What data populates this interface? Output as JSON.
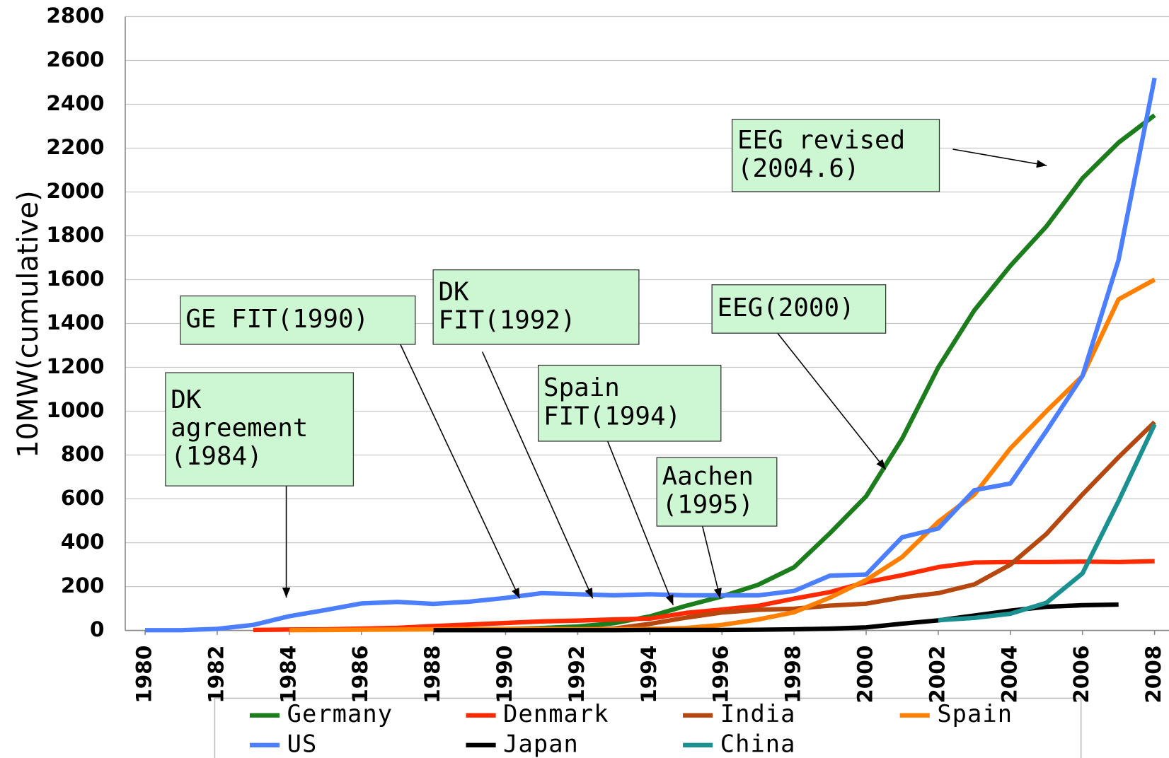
{
  "chart_data": {
    "type": "line",
    "y_label": "10MW(cumulative)",
    "x": [
      1980,
      1981,
      1982,
      1983,
      1984,
      1985,
      1986,
      1987,
      1988,
      1989,
      1990,
      1991,
      1992,
      1993,
      1994,
      1995,
      1996,
      1997,
      1998,
      1999,
      2000,
      2001,
      2002,
      2003,
      2004,
      2005,
      2006,
      2007,
      2008
    ],
    "xlim": [
      1979.45,
      2008.4
    ],
    "xticks": [
      1980,
      1982,
      1984,
      1986,
      1988,
      1990,
      1992,
      1994,
      1996,
      1998,
      2000,
      2002,
      2004,
      2006,
      2008
    ],
    "ylim": [
      0,
      2800
    ],
    "yticks": [
      0,
      200,
      400,
      600,
      800,
      1000,
      1200,
      1400,
      1600,
      1800,
      2000,
      2200,
      2400,
      2600,
      2800
    ],
    "grid": true,
    "series": [
      {
        "name": "Germany",
        "color": "#1b7d1b",
        "values": [
          null,
          null,
          null,
          null,
          null,
          null,
          null,
          null,
          2,
          3,
          6,
          11,
          18,
          33,
          64,
          112,
          155,
          208,
          288,
          444,
          612,
          875,
          1200,
          1460,
          1663,
          1843,
          2062,
          2225,
          2350
        ]
      },
      {
        "name": "Denmark",
        "color": "#ff2a00",
        "values": [
          null,
          null,
          null,
          2,
          4,
          5,
          8,
          12,
          20,
          27,
          34,
          41,
          45,
          50,
          54,
          80,
          95,
          112,
          145,
          175,
          220,
          252,
          289,
          310,
          312,
          312,
          314,
          312,
          316
        ]
      },
      {
        "name": "India",
        "color": "#b5470f",
        "values": [
          null,
          null,
          null,
          null,
          null,
          null,
          null,
          null,
          3,
          3,
          4,
          4,
          5,
          8,
          30,
          58,
          82,
          94,
          99,
          113,
          122,
          151,
          170,
          210,
          300,
          440,
          620,
          790,
          950
        ]
      },
      {
        "name": "Spain",
        "color": "#ff8000",
        "values": [
          null,
          null,
          null,
          null,
          1,
          2,
          3,
          4,
          5,
          6,
          7,
          7,
          5,
          5,
          7,
          11,
          25,
          50,
          83,
          150,
          230,
          335,
          495,
          620,
          830,
          1000,
          1160,
          1510,
          1600
        ]
      },
      {
        "name": "US",
        "color": "#4c7fff",
        "values": [
          1,
          1,
          7,
          25,
          65,
          93,
          123,
          130,
          121,
          131,
          148,
          170,
          165,
          160,
          165,
          160,
          160,
          160,
          180,
          250,
          255,
          425,
          465,
          640,
          670,
          910,
          1160,
          1690,
          2520
        ]
      },
      {
        "name": "Japan",
        "color": "#000000",
        "values": [
          null,
          null,
          null,
          null,
          null,
          null,
          null,
          null,
          1,
          1,
          1,
          1,
          1,
          1,
          2,
          2,
          2,
          3,
          5,
          8,
          14,
          31,
          46,
          68,
          90,
          108,
          115,
          118,
          null
        ]
      },
      {
        "name": "China",
        "color": "#1a9090",
        "values": [
          null,
          null,
          null,
          null,
          null,
          null,
          null,
          null,
          null,
          null,
          null,
          null,
          null,
          null,
          null,
          null,
          null,
          null,
          null,
          null,
          null,
          null,
          47,
          57,
          76,
          126,
          260,
          590,
          940
        ]
      }
    ],
    "annotations": [
      {
        "lines": [
          "DK",
          "agreement",
          "(1984)"
        ]
      },
      {
        "lines": [
          "GE FIT(1990)"
        ]
      },
      {
        "lines": [
          "DK",
          "FIT(1992)"
        ]
      },
      {
        "lines": [
          "Spain",
          "FIT(1994)"
        ]
      },
      {
        "lines": [
          "Aachen",
          "(1995)"
        ]
      },
      {
        "lines": [
          "EEG(2000)"
        ]
      },
      {
        "lines": [
          "EEG revised",
          "(2004.6)"
        ]
      }
    ]
  }
}
